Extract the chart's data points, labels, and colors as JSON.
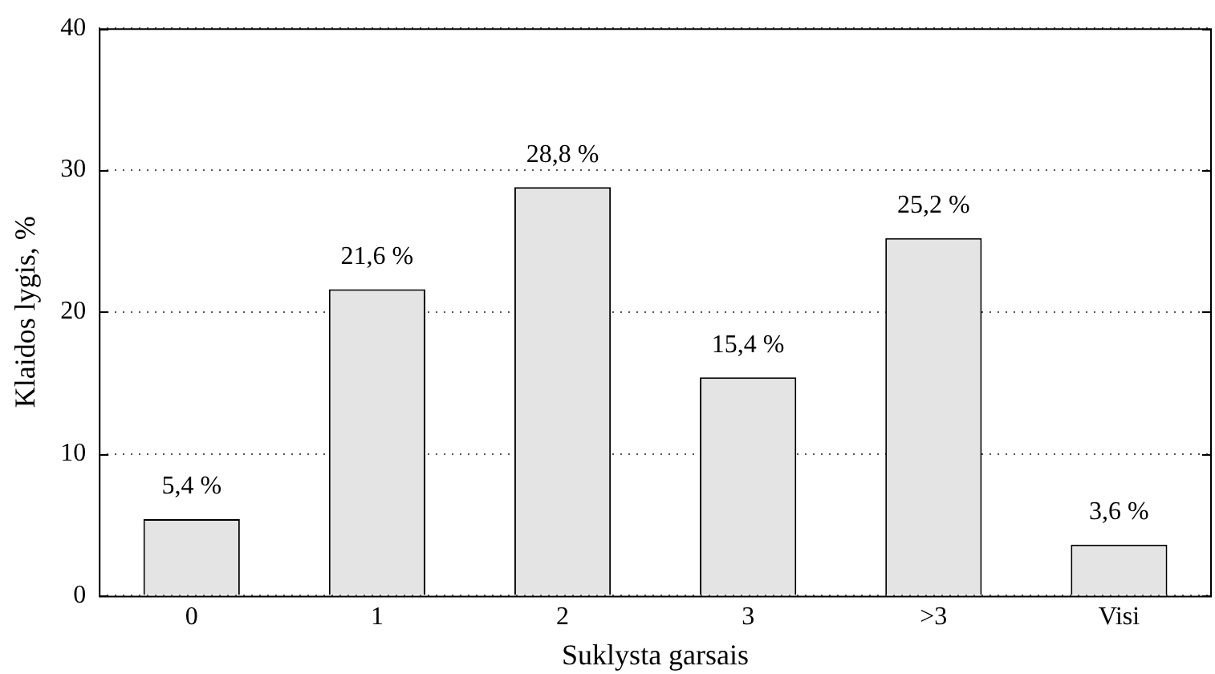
{
  "chart_data": {
    "type": "bar",
    "xlabel": "Suklysta garsais",
    "ylabel": "Klaidos lygis, %",
    "categories": [
      "0",
      "1",
      "2",
      "3",
      ">3",
      "Visi"
    ],
    "values": [
      5.4,
      21.6,
      28.8,
      15.4,
      25.2,
      3.6
    ],
    "value_labels": [
      "5,4 %",
      "21,6 %",
      "28,8 %",
      "15,4 %",
      "25,2 %",
      "3,6 %"
    ],
    "color": "#e4e4e4",
    "ylim": [
      0,
      40
    ],
    "yticks": [
      0,
      10,
      20,
      30,
      40
    ],
    "grid": "y",
    "legend": false
  }
}
